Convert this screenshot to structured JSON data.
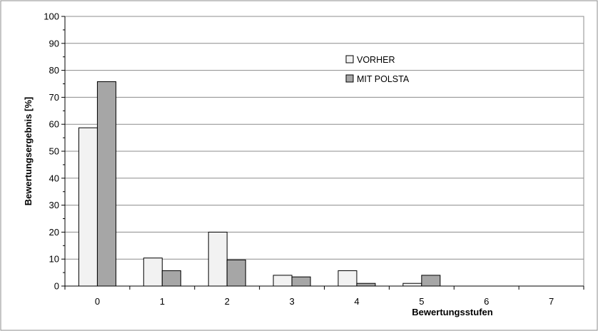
{
  "chart_data": {
    "type": "bar",
    "categories": [
      "0",
      "1",
      "2",
      "3",
      "4",
      "5",
      "6",
      "7"
    ],
    "series": [
      {
        "name": "VORHER",
        "color": "#f2f2f2",
        "values": [
          58.7,
          10.4,
          20.0,
          4.0,
          5.7,
          1.0,
          0,
          0
        ]
      },
      {
        "name": "MIT POLSTA",
        "color": "#a6a6a6",
        "values": [
          75.8,
          5.7,
          9.7,
          3.4,
          1.0,
          4.0,
          0,
          0
        ]
      }
    ],
    "title": "",
    "xlabel": "Bewertungsstufen",
    "ylabel": "Bewertungsergebnis [%]",
    "ylim": [
      0,
      100
    ],
    "yticks": [
      0,
      10,
      20,
      30,
      40,
      50,
      60,
      70,
      80,
      90,
      100
    ],
    "grid": true,
    "legend": "top-center"
  }
}
